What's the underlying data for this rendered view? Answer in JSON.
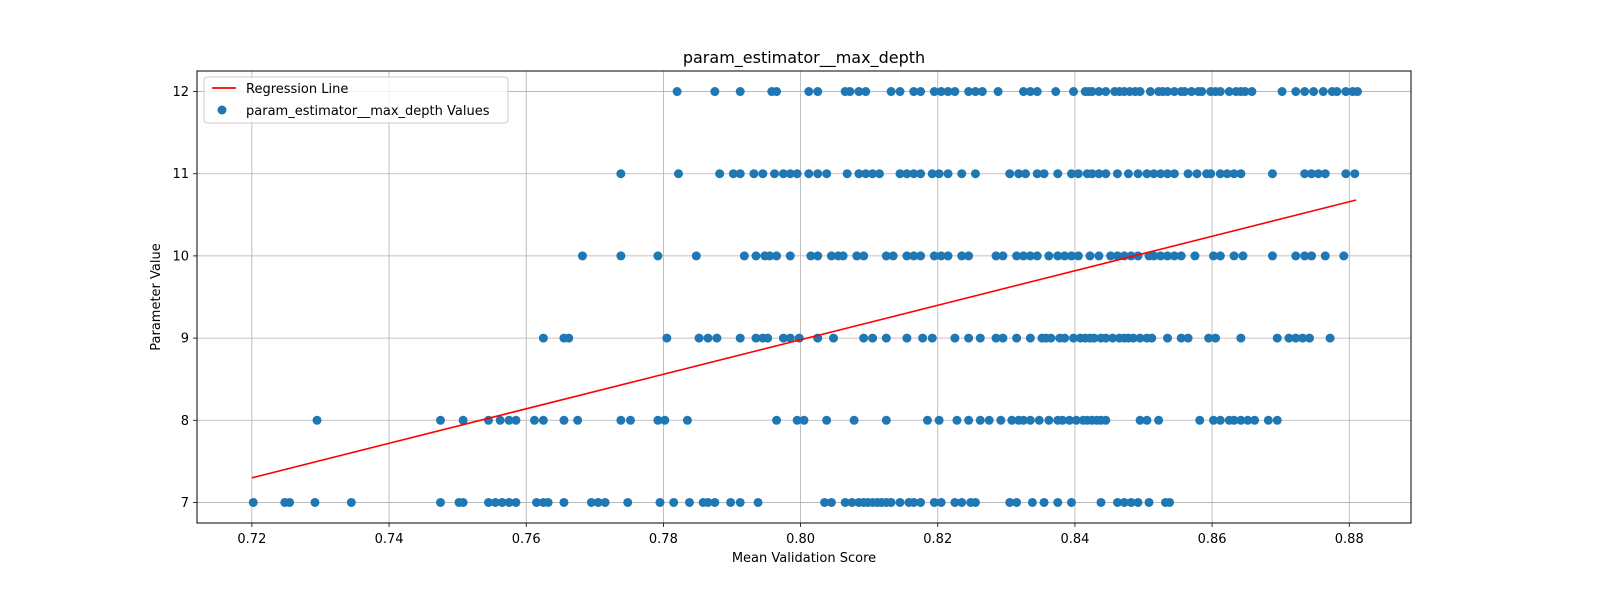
{
  "chart_data": {
    "type": "scatter",
    "title": "param_estimator__max_depth",
    "xlabel": "Mean Validation Score",
    "ylabel": "Parameter Value",
    "xlim": [
      0.712,
      0.889
    ],
    "ylim": [
      6.75,
      12.25
    ],
    "x_ticks": [
      "0.72",
      "0.74",
      "0.76",
      "0.78",
      "0.80",
      "0.82",
      "0.84",
      "0.86",
      "0.88"
    ],
    "y_ticks": [
      "7",
      "8",
      "9",
      "10",
      "11",
      "12"
    ],
    "grid": true,
    "legend_position": "top-left",
    "colors": {
      "points": "#1f77b4",
      "regression": "#ff0000",
      "grid": "#b0b0b0"
    },
    "regression_line": {
      "name": "Regression Line",
      "x": [
        0.72,
        0.881
      ],
      "y": [
        7.3,
        10.68
      ]
    },
    "series": [
      {
        "name": "param_estimator__max_depth Values",
        "points": [
          {
            "y": 12,
            "x": [
              0.782,
              0.7875,
              0.7912,
              0.7958,
              0.7965,
              0.8012,
              0.8025,
              0.8065,
              0.8072,
              0.8085,
              0.8095,
              0.8132,
              0.8145,
              0.8165,
              0.8175,
              0.8195,
              0.8205,
              0.8215,
              0.8225,
              0.8245,
              0.8255,
              0.8265,
              0.8288,
              0.8325,
              0.8335,
              0.8345,
              0.8372,
              0.8398,
              0.8415,
              0.842,
              0.8425,
              0.8435,
              0.8445,
              0.8458,
              0.8465,
              0.8472,
              0.848,
              0.8488,
              0.8495,
              0.851,
              0.8522,
              0.8528,
              0.8535,
              0.8545,
              0.8555,
              0.856,
              0.857,
              0.858,
              0.8585,
              0.8598,
              0.8605,
              0.8612,
              0.8625,
              0.8635,
              0.8642,
              0.8648,
              0.8658,
              0.8702,
              0.8722,
              0.8735,
              0.8748,
              0.8762,
              0.8775,
              0.8782,
              0.8795,
              0.8805,
              0.8812
            ]
          },
          {
            "y": 11,
            "x": [
              0.7738,
              0.7822,
              0.7882,
              0.7902,
              0.7912,
              0.7932,
              0.7945,
              0.7962,
              0.7975,
              0.7985,
              0.7995,
              0.8012,
              0.8025,
              0.8038,
              0.8068,
              0.8085,
              0.8095,
              0.8105,
              0.8115,
              0.8145,
              0.8155,
              0.8165,
              0.8175,
              0.8192,
              0.8202,
              0.8215,
              0.8235,
              0.8255,
              0.8305,
              0.8318,
              0.8328,
              0.8345,
              0.8355,
              0.8375,
              0.8395,
              0.8405,
              0.8418,
              0.8425,
              0.8435,
              0.8445,
              0.8462,
              0.8478,
              0.8492,
              0.8505,
              0.8515,
              0.8525,
              0.8535,
              0.8545,
              0.8565,
              0.8578,
              0.8592,
              0.8598,
              0.8612,
              0.8622,
              0.8632,
              0.8642,
              0.8688,
              0.8735,
              0.8745,
              0.8755,
              0.8765,
              0.8795,
              0.8808
            ]
          },
          {
            "y": 10,
            "x": [
              0.7682,
              0.7738,
              0.7792,
              0.7848,
              0.7918,
              0.7935,
              0.7948,
              0.7955,
              0.7965,
              0.7985,
              0.8015,
              0.8025,
              0.8045,
              0.8055,
              0.8062,
              0.8082,
              0.8092,
              0.8125,
              0.8135,
              0.8155,
              0.8165,
              0.8175,
              0.8195,
              0.8205,
              0.8215,
              0.8235,
              0.8245,
              0.8285,
              0.8295,
              0.8315,
              0.8325,
              0.8335,
              0.8345,
              0.8362,
              0.8375,
              0.8385,
              0.8395,
              0.8405,
              0.8422,
              0.8435,
              0.8452,
              0.8462,
              0.8472,
              0.8482,
              0.8492,
              0.8508,
              0.8515,
              0.8525,
              0.8535,
              0.8545,
              0.8555,
              0.8575,
              0.8602,
              0.8612,
              0.8632,
              0.8645,
              0.8688,
              0.8722,
              0.8735,
              0.8745,
              0.8765,
              0.8792
            ]
          },
          {
            "y": 9,
            "x": [
              0.7625,
              0.7655,
              0.7662,
              0.7805,
              0.7852,
              0.7865,
              0.7878,
              0.7912,
              0.7935,
              0.7945,
              0.7952,
              0.7975,
              0.7985,
              0.7998,
              0.8025,
              0.8048,
              0.8092,
              0.8105,
              0.8125,
              0.8155,
              0.8178,
              0.8192,
              0.8225,
              0.8245,
              0.8262,
              0.8285,
              0.8295,
              0.8315,
              0.8335,
              0.8352,
              0.8358,
              0.8365,
              0.8378,
              0.8385,
              0.8398,
              0.8408,
              0.8415,
              0.8422,
              0.8428,
              0.8438,
              0.8445,
              0.8455,
              0.8465,
              0.8472,
              0.8478,
              0.8485,
              0.8495,
              0.8505,
              0.8512,
              0.8535,
              0.8555,
              0.8565,
              0.8595,
              0.8605,
              0.8642,
              0.8695,
              0.8712,
              0.8722,
              0.8732,
              0.8742,
              0.8772
            ]
          },
          {
            "y": 8,
            "x": [
              0.7295,
              0.7475,
              0.7508,
              0.7545,
              0.7562,
              0.7575,
              0.7585,
              0.7612,
              0.7625,
              0.7655,
              0.7675,
              0.7738,
              0.7752,
              0.7792,
              0.7802,
              0.7835,
              0.7965,
              0.7995,
              0.8005,
              0.8038,
              0.8078,
              0.8125,
              0.8185,
              0.8202,
              0.8228,
              0.8245,
              0.8262,
              0.8275,
              0.8292,
              0.8308,
              0.8318,
              0.8325,
              0.8335,
              0.8348,
              0.8362,
              0.8375,
              0.8382,
              0.8392,
              0.8402,
              0.8412,
              0.8418,
              0.8425,
              0.8432,
              0.8438,
              0.8445,
              0.8495,
              0.8505,
              0.8522,
              0.8582,
              0.8602,
              0.8612,
              0.8625,
              0.8632,
              0.8642,
              0.8652,
              0.8662,
              0.8682,
              0.8695
            ]
          },
          {
            "y": 7,
            "x": [
              0.7202,
              0.7248,
              0.7255,
              0.7292,
              0.7345,
              0.7475,
              0.7502,
              0.7508,
              0.7545,
              0.7555,
              0.7565,
              0.7575,
              0.7585,
              0.7615,
              0.7625,
              0.7632,
              0.7655,
              0.7695,
              0.7705,
              0.7715,
              0.7748,
              0.7795,
              0.7815,
              0.7838,
              0.7858,
              0.7865,
              0.7875,
              0.7898,
              0.7912,
              0.7938,
              0.8035,
              0.8045,
              0.8065,
              0.8075,
              0.8085,
              0.8092,
              0.8098,
              0.8105,
              0.8112,
              0.8118,
              0.8125,
              0.8132,
              0.8145,
              0.8158,
              0.8165,
              0.8175,
              0.8195,
              0.8205,
              0.8225,
              0.8235,
              0.8248,
              0.8255,
              0.8305,
              0.8315,
              0.8338,
              0.8355,
              0.8375,
              0.8395,
              0.8438,
              0.8462,
              0.8472,
              0.8482,
              0.8492,
              0.8508,
              0.8532,
              0.8538
            ]
          }
        ]
      }
    ]
  }
}
